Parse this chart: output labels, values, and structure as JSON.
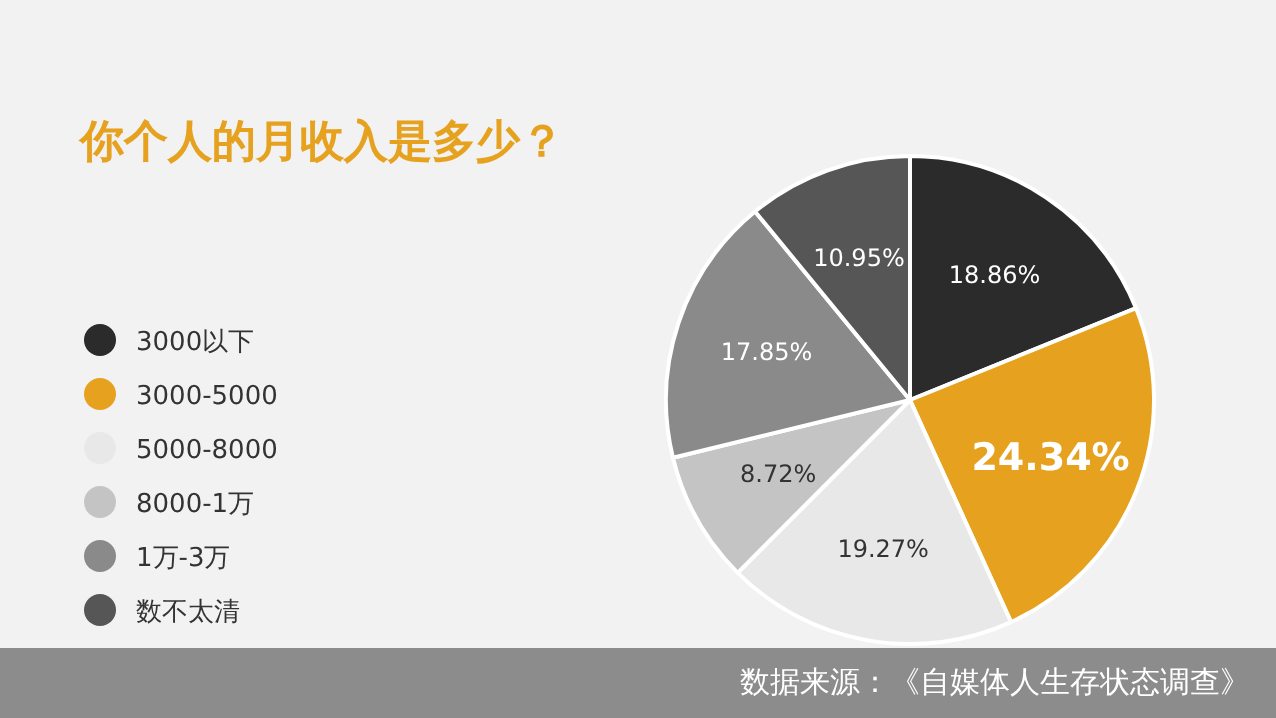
{
  "chart_data": {
    "type": "pie",
    "title": "你个人的月收入是多少？",
    "categories": [
      "3000以下",
      "3000-5000",
      "5000-8000",
      "8000-1万",
      "1万-3万",
      "数不太清"
    ],
    "values": [
      18.86,
      24.34,
      19.27,
      8.72,
      17.85,
      10.95
    ],
    "value_labels": [
      "18.86%",
      "24.34%",
      "19.27%",
      "8.72%",
      "17.85%",
      "10.95%"
    ],
    "colors": [
      "#2b2b2b",
      "#e6a11e",
      "#e8e8e8",
      "#c4c4c4",
      "#8a8a8a",
      "#565656"
    ],
    "legend": "left",
    "annotations": [
      "数据来源：《自媒体人生存状态调查》"
    ]
  }
}
